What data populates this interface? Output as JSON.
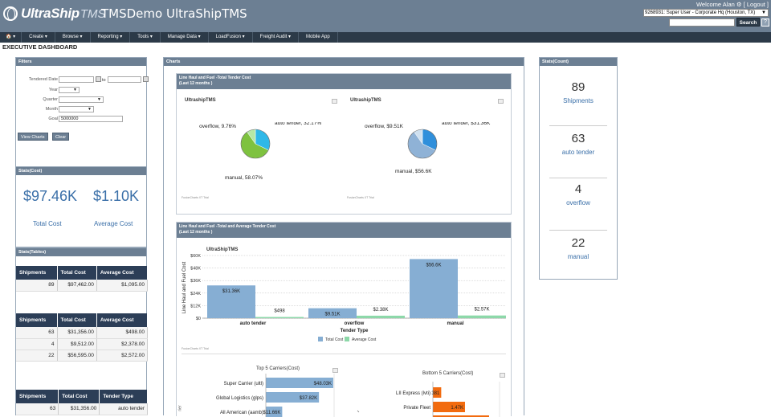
{
  "header": {
    "brand": "UltraShip",
    "brand_suffix": "TMS",
    "app_title": "TMSDemo UltraShipTMS",
    "welcome_text": "Welcome Alan",
    "logout_label": "[ Logout ]",
    "user_select": "9268931: Super User - Corporate Hq (Houston, TX)",
    "search_label": "Search",
    "help_label": "?"
  },
  "nav": {
    "items": [
      {
        "label": "🏠 ▾"
      },
      {
        "label": "Create ▾"
      },
      {
        "label": "Browse ▾"
      },
      {
        "label": "Reporting ▾"
      },
      {
        "label": "Tools ▾"
      },
      {
        "label": "Manage Data ▾"
      },
      {
        "label": "LoadFusion ▾"
      },
      {
        "label": "Freight Audit ▾"
      },
      {
        "label": "Mobile App"
      }
    ]
  },
  "page_title": "EXECUTIVE DASHBOARD",
  "filters": {
    "title": "Filters",
    "tendered_date_label": "Tendered Date",
    "to_label": "to",
    "year_label": "Year",
    "quarter_label": "Quarter",
    "month_label": "Month",
    "goal_label": "Goal",
    "goal_value": "5000000",
    "view_charts": "View Charts",
    "clear": "Clear"
  },
  "stats_cost": {
    "title": "Stats(Cost)",
    "total_cost_value": "$97.46K",
    "total_cost_label": "Total Cost",
    "avg_cost_value": "$1.10K",
    "avg_cost_label": "Average Cost"
  },
  "stats_tables": {
    "title": "Stats(Tables)",
    "table1": {
      "headers": [
        "Shipments",
        "Total Cost",
        "Average Cost"
      ],
      "rows": [
        [
          "89",
          "$97,462.00",
          "$1,095.00"
        ]
      ]
    },
    "table2": {
      "headers": [
        "Shipments",
        "Total Cost",
        "Average Cost"
      ],
      "rows": [
        [
          "63",
          "$31,356.00",
          "$498.00"
        ],
        [
          "4",
          "$9,512.00",
          "$2,378.00"
        ],
        [
          "22",
          "$56,595.00",
          "$2,572.00"
        ]
      ]
    },
    "table3": {
      "headers": [
        "Shipments",
        "Total Cost",
        "Tender Type"
      ],
      "rows": [
        [
          "63",
          "$31,356.00",
          "auto tender"
        ]
      ]
    }
  },
  "charts": {
    "title": "Charts",
    "panel1_title": "Line Haul and Fuel -Total Tender Cost",
    "panel1_sub": "(Last 12 months )",
    "panel2_title": "Line Haul and Fuel -Total and Average Tender Cost",
    "panel2_sub": "(Last 12 months )",
    "caption": "UltrashipTMS",
    "caption_left": "UltraShipTMS",
    "fc_trial": "FusionCharts XT Trial",
    "pie1": {
      "labels": [
        "auto tender, 32.17%",
        "overflow, 9.76%",
        "manual, 58.07%"
      ]
    },
    "pie2": {
      "labels": [
        "auto tender, $31.36K",
        "overflow, $9.51K",
        "manual, $56.6K"
      ]
    },
    "bar_legend_total": "Total Cost",
    "bar_legend_avg": "Average Cost",
    "bar_xlabel": "Tender Type",
    "bar_ylabel": "Line Haul and Fuel Cost",
    "top5_title": "Top 5 Carriers(Cost)",
    "bottom5_title": "Bottom 5 Carriers(Cost)",
    "bottom_partial_axis": "rier"
  },
  "chart_data": [
    {
      "type": "pie",
      "title": "UltrashipTMS",
      "categories": [
        "auto tender",
        "overflow",
        "manual"
      ],
      "values": [
        32.17,
        9.76,
        58.07
      ],
      "colors": [
        "#2fb8e8",
        "#b6e8a6",
        "#7ec23f"
      ]
    },
    {
      "type": "pie",
      "title": "UltrashipTMS",
      "categories": [
        "auto tender",
        "overflow",
        "manual"
      ],
      "values": [
        31.36,
        9.51,
        56.6
      ],
      "colors": [
        "#2f8fdb",
        "#cfe0ef",
        "#8fb2d6"
      ]
    },
    {
      "type": "bar",
      "title": "UltraShipTMS",
      "xlabel": "Tender Type",
      "ylabel": "Line Haul and Fuel Cost",
      "categories": [
        "auto tender",
        "overflow",
        "manual"
      ],
      "ylim": [
        0,
        60
      ],
      "yticks": [
        "$0",
        "$12K",
        "$24K",
        "$36K",
        "$48K",
        "$60K"
      ],
      "series": [
        {
          "name": "Total Cost",
          "values": [
            31.36,
            9.51,
            56.6
          ],
          "labels": [
            "$31.36K",
            "$9.51K",
            "$56.6K"
          ],
          "color": "#86aed3"
        },
        {
          "name": "Average Cost",
          "values": [
            0.498,
            2.38,
            2.57
          ],
          "labels": [
            "$498",
            "$2.38K",
            "$2.57K"
          ],
          "color": "#8dd8a9"
        }
      ]
    },
    {
      "type": "bar",
      "title": "Top 5 Carriers(Cost)",
      "categories": [
        "Super Carrier (ultl)",
        "Global Logistics (glps)",
        "All American (aamb)"
      ],
      "values": [
        48.03,
        37.82,
        11.66
      ],
      "labels": [
        "$48.03K",
        "$37.82K",
        "$11.66K"
      ],
      "color": "#86aed3"
    },
    {
      "type": "bar",
      "title": "Bottom 5 Carriers(Cost)",
      "categories": [
        "LII Express (lvti)",
        "Private Fleet"
      ],
      "values": [
        0.381,
        1.47
      ],
      "labels": [
        "381",
        "1.47K"
      ],
      "color": "#f26b0f"
    }
  ],
  "stats_count": {
    "title": "Stats(Count)",
    "items": [
      {
        "value": "89",
        "label": "Shipments"
      },
      {
        "value": "63",
        "label": "auto tender"
      },
      {
        "value": "4",
        "label": "overflow"
      },
      {
        "value": "22",
        "label": "manual"
      }
    ]
  }
}
